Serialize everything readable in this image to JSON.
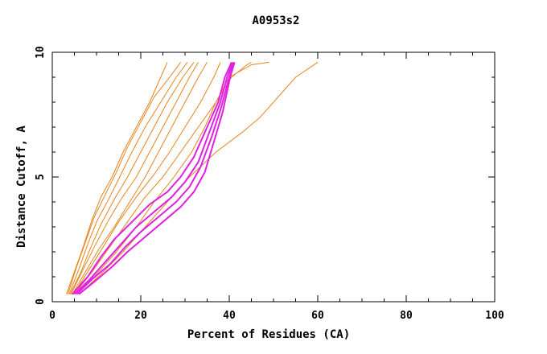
{
  "chart_data": {
    "type": "line",
    "title": "A0953s2",
    "xlabel": "Percent of Residues (CA)",
    "ylabel": "Distance Cutoff, A",
    "xlim": [
      0,
      100
    ],
    "ylim": [
      0,
      10
    ],
    "x_ticks": [
      "0",
      "20",
      "40",
      "60",
      "80",
      "100"
    ],
    "y_ticks": [
      "0",
      "5",
      "10"
    ],
    "grid": false,
    "legend": "none",
    "colors": {
      "others": "#e8821a",
      "highlight": "#e020e0",
      "axes": "#000000"
    },
    "series": [
      {
        "group": "others",
        "points": [
          [
            3.2,
            0.3
          ],
          [
            5,
            1.2
          ],
          [
            7,
            2.2
          ],
          [
            9,
            3.3
          ],
          [
            11,
            4.2
          ],
          [
            13.5,
            5.0
          ],
          [
            16,
            6.0
          ],
          [
            19,
            7.0
          ],
          [
            22,
            8.0
          ],
          [
            24.5,
            9.0
          ],
          [
            26,
            9.6
          ]
        ]
      },
      {
        "group": "others",
        "points": [
          [
            3.5,
            0.3
          ],
          [
            5.5,
            1.4
          ],
          [
            7.5,
            2.4
          ],
          [
            9.5,
            3.4
          ],
          [
            12,
            4.3
          ],
          [
            14.5,
            5.2
          ],
          [
            17,
            6.2
          ],
          [
            20,
            7.2
          ],
          [
            23,
            8.2
          ],
          [
            26.5,
            9.0
          ],
          [
            29,
            9.6
          ]
        ]
      },
      {
        "group": "others",
        "points": [
          [
            3.8,
            0.3
          ],
          [
            6,
            1.3
          ],
          [
            8,
            2.3
          ],
          [
            10,
            3.2
          ],
          [
            13,
            4.2
          ],
          [
            15.5,
            5.1
          ],
          [
            18,
            6.0
          ],
          [
            21,
            7.0
          ],
          [
            24.5,
            8.0
          ],
          [
            28,
            9.0
          ],
          [
            30.5,
            9.6
          ]
        ]
      },
      {
        "group": "others",
        "points": [
          [
            4,
            0.3
          ],
          [
            6.5,
            1.2
          ],
          [
            8.5,
            2.1
          ],
          [
            11,
            3.1
          ],
          [
            14,
            4.1
          ],
          [
            17,
            5.0
          ],
          [
            20,
            6.0
          ],
          [
            23,
            7.0
          ],
          [
            26,
            8.0
          ],
          [
            29.5,
            9.0
          ],
          [
            32,
            9.6
          ]
        ]
      },
      {
        "group": "others",
        "points": [
          [
            4.2,
            0.3
          ],
          [
            7,
            1.3
          ],
          [
            9.5,
            2.2
          ],
          [
            12.5,
            3.2
          ],
          [
            15.5,
            4.1
          ],
          [
            19,
            5.0
          ],
          [
            22,
            6.0
          ],
          [
            25,
            7.0
          ],
          [
            28,
            8.0
          ],
          [
            31,
            9.0
          ],
          [
            33,
            9.6
          ]
        ]
      },
      {
        "group": "others",
        "points": [
          [
            4.5,
            0.3
          ],
          [
            7.5,
            1.2
          ],
          [
            10.5,
            2.1
          ],
          [
            14,
            3.0
          ],
          [
            17.5,
            4.0
          ],
          [
            21,
            5.0
          ],
          [
            24,
            6.0
          ],
          [
            27,
            7.0
          ],
          [
            30,
            8.0
          ],
          [
            33,
            9.0
          ],
          [
            35,
            9.6
          ]
        ]
      },
      {
        "group": "others",
        "points": [
          [
            4.8,
            0.3
          ],
          [
            8,
            1.2
          ],
          [
            11.5,
            2.2
          ],
          [
            15,
            3.2
          ],
          [
            19,
            4.2
          ],
          [
            23,
            5.1
          ],
          [
            26.5,
            6.0
          ],
          [
            30,
            7.0
          ],
          [
            33.5,
            8.0
          ],
          [
            36.5,
            9.0
          ],
          [
            38,
            9.6
          ]
        ]
      },
      {
        "group": "others",
        "points": [
          [
            5,
            0.3
          ],
          [
            9,
            1.2
          ],
          [
            13,
            2.2
          ],
          [
            17,
            3.2
          ],
          [
            21,
            4.2
          ],
          [
            25,
            5.0
          ],
          [
            29,
            6.0
          ],
          [
            33,
            7.0
          ],
          [
            37,
            8.0
          ],
          [
            40.5,
            9.0
          ],
          [
            44,
            9.5
          ],
          [
            45,
            9.6
          ]
        ]
      },
      {
        "group": "others",
        "points": [
          [
            5.5,
            0.3
          ],
          [
            10,
            1.1
          ],
          [
            14.5,
            2.0
          ],
          [
            19,
            3.0
          ],
          [
            23,
            4.0
          ],
          [
            27.5,
            5.0
          ],
          [
            31.5,
            6.0
          ],
          [
            34.5,
            7.0
          ],
          [
            37,
            8.0
          ],
          [
            40,
            9.0
          ],
          [
            45,
            9.5
          ],
          [
            49,
            9.6
          ]
        ]
      },
      {
        "group": "others",
        "points": [
          [
            6,
            0.3
          ],
          [
            11,
            1.1
          ],
          [
            16,
            2.0
          ],
          [
            21,
            3.0
          ],
          [
            26,
            4.0
          ],
          [
            31,
            5.0
          ],
          [
            37,
            6.0
          ],
          [
            43,
            6.8
          ],
          [
            47,
            7.4
          ],
          [
            51,
            8.2
          ],
          [
            55,
            9.0
          ],
          [
            60,
            9.6
          ]
        ]
      },
      {
        "group": "highlight",
        "points": [
          [
            4.5,
            0.3
          ],
          [
            8,
            1.0
          ],
          [
            11,
            1.8
          ],
          [
            14,
            2.5
          ],
          [
            18,
            3.2
          ],
          [
            22,
            3.9
          ],
          [
            26,
            4.4
          ],
          [
            29,
            5.0
          ],
          [
            32,
            5.8
          ],
          [
            35,
            7.0
          ],
          [
            37.5,
            8.0
          ],
          [
            39,
            9.0
          ],
          [
            40.5,
            9.6
          ]
        ]
      },
      {
        "group": "highlight",
        "points": [
          [
            5,
            0.3
          ],
          [
            8.5,
            0.9
          ],
          [
            12,
            1.6
          ],
          [
            15.5,
            2.3
          ],
          [
            19,
            3.0
          ],
          [
            23,
            3.6
          ],
          [
            27,
            4.2
          ],
          [
            30,
            4.8
          ],
          [
            33,
            5.6
          ],
          [
            35.5,
            6.8
          ],
          [
            38,
            8.0
          ],
          [
            39.5,
            9.0
          ],
          [
            40.8,
            9.6
          ]
        ]
      },
      {
        "group": "highlight",
        "points": [
          [
            5.5,
            0.3
          ],
          [
            9,
            0.9
          ],
          [
            13,
            1.5
          ],
          [
            16.5,
            2.2
          ],
          [
            20,
            2.8
          ],
          [
            24,
            3.4
          ],
          [
            28,
            4.0
          ],
          [
            31,
            4.6
          ],
          [
            33.5,
            5.4
          ],
          [
            36,
            6.6
          ],
          [
            38.2,
            7.8
          ],
          [
            40,
            9.0
          ],
          [
            41,
            9.6
          ]
        ]
      },
      {
        "group": "highlight",
        "points": [
          [
            6,
            0.3
          ],
          [
            9.5,
            0.8
          ],
          [
            13.5,
            1.4
          ],
          [
            17,
            2.0
          ],
          [
            21,
            2.6
          ],
          [
            25,
            3.2
          ],
          [
            29,
            3.8
          ],
          [
            32,
            4.4
          ],
          [
            34.5,
            5.2
          ],
          [
            36.5,
            6.4
          ],
          [
            38.5,
            7.6
          ],
          [
            40.2,
            9.0
          ],
          [
            41.2,
            9.6
          ]
        ]
      }
    ]
  }
}
